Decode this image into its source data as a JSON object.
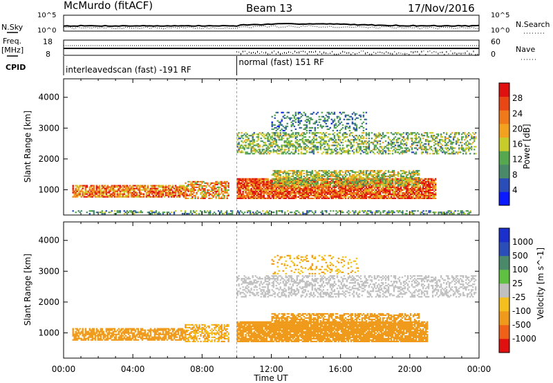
{
  "header": {
    "station": "McMurdo (fitACF)",
    "beam": "Beam 13",
    "date": "17/Nov/2016"
  },
  "top_strip": {
    "nsky_label": "N.Sky",
    "nsearch_label": "N.Search",
    "noise_ticks_left": [
      "10^5",
      "10^0"
    ],
    "noise_ticks_right": [
      "10^5",
      "10^0"
    ],
    "freq_label_1": "Freq.",
    "freq_label_2": "[MHz]",
    "nave_label": "Nave",
    "freq_ticks": [
      "18",
      "8"
    ],
    "nave_ticks": [
      "60",
      "0"
    ],
    "cpid_label": "CPID",
    "mode_1": "interleavedscan (fast) -191 RF",
    "mode_2": "normal (fast) 151 RF",
    "mode_switch_hour": 10
  },
  "colors": {
    "power": [
      "#0a19ff",
      "#2b4db8",
      "#4a8a6a",
      "#55a84d",
      "#c8cc2a",
      "#f2a21e",
      "#f07a1a",
      "#e84614",
      "#e01010"
    ],
    "velocity": [
      "#e01010",
      "#f06018",
      "#f09a1c",
      "#f5c01e",
      "#c0c0c0",
      "#60c040",
      "#4a8a6a",
      "#2b4db8",
      "#1a2fcc"
    ]
  },
  "chart_data": [
    {
      "type": "heatmap",
      "title": "Power",
      "ylabel": "Slant Range [km]",
      "xlabel": "Time UT",
      "xlim_hours": [
        0,
        24
      ],
      "ylim": [
        180,
        4600
      ],
      "x_tick_labels": [
        "00:00",
        "04:00",
        "08:00",
        "12:00",
        "16:00",
        "20:00",
        "00:00"
      ],
      "y_ticks": [
        1000,
        2000,
        3000,
        4000
      ],
      "colorbar": {
        "label": "Power [dB]",
        "ticks": [
          "4",
          "8",
          "12",
          "16",
          "20",
          "24",
          "28"
        ],
        "range": [
          0,
          30
        ]
      },
      "bands": [
        {
          "x": [
            0.5,
            7.0
          ],
          "y": [
            750,
            1150
          ],
          "value": 22,
          "density": 0.75
        },
        {
          "x": [
            7.0,
            9.5
          ],
          "y": [
            700,
            1250
          ],
          "value": 20,
          "density": 0.6
        },
        {
          "x": [
            10.0,
            21.5
          ],
          "y": [
            700,
            1350
          ],
          "value": 24,
          "density": 0.85
        },
        {
          "x": [
            12.0,
            20.5
          ],
          "y": [
            1100,
            1600
          ],
          "value": 14,
          "density": 0.6
        },
        {
          "x": [
            10.0,
            23.8
          ],
          "y": [
            2150,
            2850
          ],
          "value": 12,
          "density": 0.45
        },
        {
          "x": [
            12.0,
            17.5
          ],
          "y": [
            2900,
            3500
          ],
          "value": 8,
          "density": 0.3
        },
        {
          "x": [
            0.5,
            23.5
          ],
          "y": [
            200,
            300
          ],
          "value": 10,
          "density": 0.4
        }
      ]
    },
    {
      "type": "heatmap",
      "title": "Velocity",
      "ylabel": "Slant Range [km]",
      "xlabel": "Time UT",
      "xlim_hours": [
        0,
        24
      ],
      "ylim": [
        180,
        4600
      ],
      "x_tick_labels": [
        "00:00",
        "04:00",
        "08:00",
        "12:00",
        "16:00",
        "20:00",
        "00:00"
      ],
      "y_ticks": [
        1000,
        2000,
        3000,
        4000
      ],
      "colorbar": {
        "label": "Velocity [m s^-1]",
        "ticks": [
          "-1000",
          "-500",
          "-100",
          "-25",
          "25",
          "100",
          "500",
          "1000"
        ]
      },
      "bands": [
        {
          "x": [
            0.5,
            7.0
          ],
          "y": [
            750,
            1150
          ],
          "value": -150,
          "density": 0.7
        },
        {
          "x": [
            7.0,
            9.5
          ],
          "y": [
            700,
            1250
          ],
          "value": -100,
          "density": 0.55
        },
        {
          "x": [
            10.0,
            21.0
          ],
          "y": [
            700,
            1350
          ],
          "value": -300,
          "density": 0.85
        },
        {
          "x": [
            12.0,
            20.5
          ],
          "y": [
            1100,
            1600
          ],
          "value": -300,
          "density": 0.6
        },
        {
          "x": [
            10.0,
            23.8
          ],
          "y": [
            2150,
            2850
          ],
          "value": 0,
          "density": 0.4
        },
        {
          "x": [
            12.0,
            17.0
          ],
          "y": [
            2900,
            3500
          ],
          "value": -100,
          "density": 0.2
        }
      ]
    }
  ]
}
